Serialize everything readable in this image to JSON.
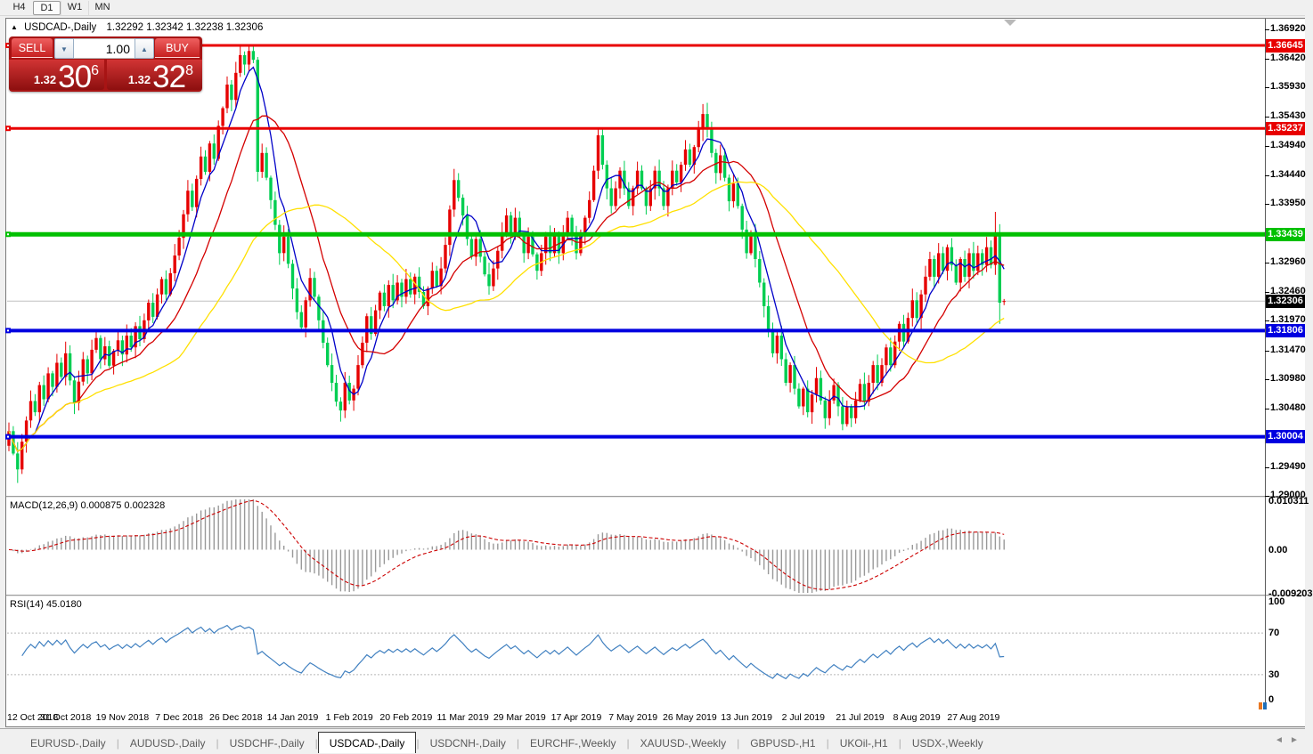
{
  "toolbar": {
    "buttons": [
      {
        "label": "H4",
        "active": false
      },
      {
        "label": "D1",
        "active": true
      },
      {
        "label": "W1",
        "active": false
      },
      {
        "label": "MN",
        "active": false
      }
    ]
  },
  "chart": {
    "title_marker": "▲",
    "symbol_title": "USDCAD-,Daily",
    "ohlc_text": "1.32292 1.32342 1.32238 1.32306"
  },
  "trade_panel": {
    "sell_label": "SELL",
    "buy_label": "BUY",
    "volume": "1.00",
    "down_glyph": "▼",
    "up_glyph": "▲",
    "sell_price_small": "1.32",
    "sell_price_big": "30",
    "sell_price_sup": "6",
    "buy_price_small": "1.32",
    "buy_price_big": "32",
    "buy_price_sup": "8"
  },
  "price_axis": {
    "ticks": [
      "1.36920",
      "1.36420",
      "1.35930",
      "1.35430",
      "1.34940",
      "1.34440",
      "1.33950",
      "1.32960",
      "1.32460",
      "1.31970",
      "1.31470",
      "1.30980",
      "1.30480",
      "1.29490",
      "1.29000"
    ],
    "tags": [
      {
        "text": "1.36645",
        "bg": "#e80000"
      },
      {
        "text": "1.35237",
        "bg": "#e80000"
      },
      {
        "text": "1.33439",
        "bg": "#00c000"
      },
      {
        "text": "1.32306",
        "bg": "#000000"
      },
      {
        "text": "1.31806",
        "bg": "#0000e0"
      },
      {
        "text": "1.30004",
        "bg": "#0000e0"
      }
    ]
  },
  "macd_panel": {
    "label": "MACD(12,26,9) 0.000875 0.002328",
    "axis": [
      {
        "text": "0.010311",
        "v": 0.010311
      },
      {
        "text": "0.00",
        "v": 0.0
      },
      {
        "text": "-0.009203",
        "v": -0.009203
      }
    ]
  },
  "rsi_panel": {
    "label": "RSI(14) 45.0180",
    "axis": [
      {
        "text": "100",
        "v": 100
      },
      {
        "text": "70",
        "v": 70
      },
      {
        "text": "30",
        "v": 30
      },
      {
        "text": "0",
        "v": 0
      }
    ]
  },
  "date_axis": {
    "labels": [
      "12 Oct 2018",
      "31 Oct 2018",
      "19 Nov 2018",
      "7 Dec 2018",
      "26 Dec 2018",
      "14 Jan 2019",
      "1 Feb 2019",
      "20 Feb 2019",
      "11 Mar 2019",
      "29 Mar 2019",
      "17 Apr 2019",
      "7 May 2019",
      "26 May 2019",
      "13 Jun 2019",
      "2 Jul 2019",
      "21 Jul 2019",
      "8 Aug 2019",
      "27 Aug 2019"
    ],
    "indices": [
      0,
      13,
      26,
      39,
      52,
      65,
      78,
      91,
      104,
      117,
      130,
      143,
      156,
      169,
      182,
      195,
      208,
      221
    ]
  },
  "tabs": {
    "items": [
      {
        "label": "EURUSD-,Daily",
        "active": false
      },
      {
        "label": "AUDUSD-,Daily",
        "active": false
      },
      {
        "label": "USDCHF-,Daily",
        "active": false
      },
      {
        "label": "USDCAD-,Daily",
        "active": true
      },
      {
        "label": "USDCNH-,Daily",
        "active": false
      },
      {
        "label": "EURCHF-,Weekly",
        "active": false
      },
      {
        "label": "XAUUSD-,Weekly",
        "active": false
      },
      {
        "label": "GBPUSD-,H1",
        "active": false
      },
      {
        "label": "UKOil-,H1",
        "active": false
      },
      {
        "label": "USDX-,Weekly",
        "active": false
      }
    ],
    "nav_left": "◄",
    "nav_right": "►"
  },
  "chart_data": {
    "type": "candlestick",
    "symbol": "USDCAD",
    "timeframe": "Daily",
    "candle_colors": {
      "bull": "#e60000",
      "bear": "#00ce52"
    },
    "last_candle": {
      "open": 1.32292,
      "high": 1.32342,
      "low": 1.32238,
      "close": 1.32306
    },
    "first_open": 1.2985,
    "closes": [
      1.301,
      1.2972,
      1.2945,
      1.2992,
      1.3028,
      1.3061,
      1.3042,
      1.3088,
      1.3064,
      1.3108,
      1.3085,
      1.3126,
      1.3102,
      1.3142,
      1.3096,
      1.3058,
      1.3094,
      1.3132,
      1.3108,
      1.3148,
      1.3168,
      1.3132,
      1.3154,
      1.3121,
      1.3146,
      1.3164,
      1.314,
      1.3172,
      1.3152,
      1.3188,
      1.3166,
      1.3198,
      1.3228,
      1.3204,
      1.3242,
      1.3268,
      1.3242,
      1.3278,
      1.3308,
      1.3338,
      1.3378,
      1.3418,
      1.339,
      1.3438,
      1.3476,
      1.345,
      1.3498,
      1.3472,
      1.3528,
      1.3558,
      1.3598,
      1.3572,
      1.3618,
      1.3648,
      1.3632,
      1.3655,
      1.364,
      1.345,
      1.3482,
      1.344,
      1.3402,
      1.336,
      1.3312,
      1.334,
      1.3294,
      1.3252,
      1.3212,
      1.3186,
      1.3232,
      1.327,
      1.3238,
      1.3198,
      1.316,
      1.3122,
      1.3092,
      1.306,
      1.3045,
      1.3092,
      1.3062,
      1.3082,
      1.3122,
      1.316,
      1.3205,
      1.3175,
      1.3215,
      1.3245,
      1.3222,
      1.3258,
      1.3232,
      1.3262,
      1.3238,
      1.3268,
      1.3242,
      1.3272,
      1.3246,
      1.3222,
      1.3252,
      1.3282,
      1.3256,
      1.3286,
      1.3326,
      1.3386,
      1.3436,
      1.3406,
      1.3376,
      1.3336,
      1.3306,
      1.3336,
      1.3306,
      1.3276,
      1.3256,
      1.3286,
      1.3316,
      1.3346,
      1.3376,
      1.3346,
      1.3372,
      1.3342,
      1.3312,
      1.334,
      1.331,
      1.3282,
      1.3312,
      1.334,
      1.3312,
      1.3342,
      1.3312,
      1.3342,
      1.3372,
      1.3342,
      1.3312,
      1.3342,
      1.3372,
      1.3402,
      1.3452,
      1.3512,
      1.3462,
      1.3422,
      1.3392,
      1.3422,
      1.3452,
      1.3422,
      1.3392,
      1.3422,
      1.3452,
      1.3422,
      1.3392,
      1.3422,
      1.3452,
      1.3422,
      1.3392,
      1.3422,
      1.3452,
      1.3432,
      1.3462,
      1.3488,
      1.3462,
      1.3492,
      1.3522,
      1.3548,
      1.3522,
      1.3482,
      1.3448,
      1.3478,
      1.344,
      1.34,
      1.343,
      1.3392,
      1.3352,
      1.3312,
      1.3342,
      1.3302,
      1.3262,
      1.3222,
      1.3182,
      1.3142,
      1.3172,
      1.3132,
      1.3092,
      1.3122,
      1.3082,
      1.3052,
      1.3082,
      1.3042,
      1.3072,
      1.31,
      1.3062,
      1.3032,
      1.3062,
      1.3088,
      1.3052,
      1.3022,
      1.3052,
      1.3032,
      1.3062,
      1.309,
      1.306,
      1.3092,
      1.3122,
      1.3092,
      1.3122,
      1.3152,
      1.3122,
      1.3162,
      1.3192,
      1.3162,
      1.3202,
      1.3232,
      1.3202,
      1.3242,
      1.3272,
      1.3302,
      1.3272,
      1.3312,
      1.3282,
      1.3322,
      1.3292,
      1.3262,
      1.3302,
      1.3272,
      1.3312,
      1.3282,
      1.3312,
      1.3292,
      1.3322,
      1.3292,
      1.3345,
      1.3228,
      1.32306
    ],
    "wick_overrides": {
      "2": {
        "l": 1.2922
      },
      "53": {
        "h": 1.36645
      },
      "55": {
        "h": 1.36645
      },
      "102": {
        "h": 1.3455
      },
      "135": {
        "h": 1.3522
      },
      "159": {
        "h": 1.3565
      },
      "226": {
        "h": 1.3382
      },
      "227": {
        "l": 1.3192
      }
    },
    "levels": [
      {
        "price": 1.36645,
        "color": "#e80000",
        "width": 3
      },
      {
        "price": 1.35237,
        "color": "#e80000",
        "width": 3
      },
      {
        "price": 1.33439,
        "color": "#00c000",
        "width": 5
      },
      {
        "price": 1.31806,
        "color": "#0000e0",
        "width": 4
      },
      {
        "price": 1.30004,
        "color": "#0000e0",
        "width": 4
      }
    ],
    "current_price": 1.32306,
    "current_price_line_color": "#c0c0c0",
    "moving_averages": [
      {
        "period": 6,
        "color": "#0000c8"
      },
      {
        "period": 16,
        "color": "#d40000"
      },
      {
        "period": 40,
        "color": "#ffe000"
      }
    ],
    "macd": {
      "params": [
        12,
        26,
        9
      ],
      "bar_color": "#999999",
      "signal_color": "#cc0000",
      "scale_max": 0.010311,
      "scale_min": -0.009203
    },
    "rsi": {
      "period": 14,
      "color": "#4080c0",
      "levels": [
        70,
        30
      ],
      "level_color": "#b8b8b8"
    }
  }
}
